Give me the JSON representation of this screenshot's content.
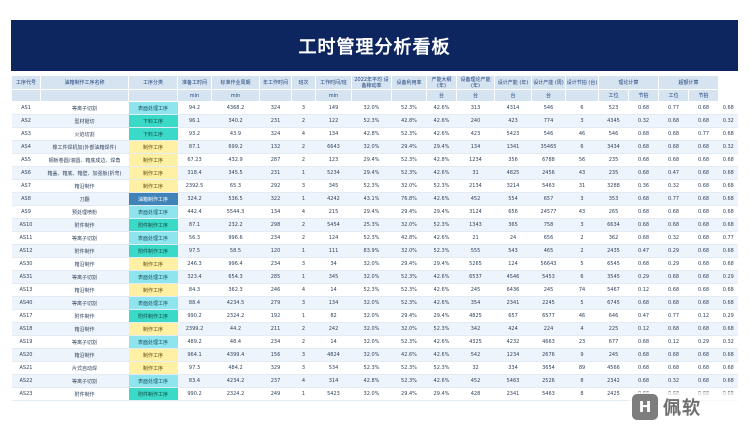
{
  "page": {
    "title": "工时管理分析看板"
  },
  "table": {
    "headers": [
      "工序代号",
      "油箱制作工序名称",
      "工序分类",
      "准备工时间",
      "标准作业周期",
      "年工作时间",
      "班次",
      "工作时间/班",
      "2022年平均 设备稼动率",
      "设备利用率",
      "产能大纲 (年)",
      "设备理论产能 (年)",
      "设计产能 (年)",
      "设计产能 (周)",
      "设计节拍 (台)",
      "理论计算",
      "超额计算"
    ],
    "units": [
      "",
      "",
      "",
      "min",
      "min",
      "",
      "",
      "min",
      "",
      "",
      "台",
      "台",
      "台",
      "台",
      "",
      "工位",
      "节拍",
      "工位",
      "节拍"
    ],
    "rows": [
      {
        "code": "AS1",
        "name": "等离子切割",
        "cat": "表面处理工序",
        "cat_class": "cat-a",
        "c": [
          "94.2",
          "4368.2",
          "324",
          "3",
          "149",
          "32.0%",
          "52.3%",
          "42.6%",
          "313",
          "4314",
          "546",
          "6",
          "523",
          "0.68",
          "0.77",
          "0.68",
          "0.68"
        ]
      },
      {
        "code": "AS2",
        "name": "型材锯切",
        "cat": "下料工序",
        "cat_class": "cat-b",
        "c": [
          "96.1",
          "340.2",
          "231",
          "2",
          "122",
          "52.3%",
          "42.8%",
          "42.6%",
          "240",
          "423",
          "774",
          "3",
          "4345",
          "0.32",
          "0.68",
          "0.68",
          "0.32"
        ]
      },
      {
        "code": "AS3",
        "name": "火焰切割",
        "cat": "下料工序",
        "cat_class": "cat-b",
        "c": [
          "93.2",
          "43.9",
          "324",
          "4",
          "134",
          "42.8%",
          "52.3%",
          "42.6%",
          "423",
          "5423",
          "546",
          "46",
          "546",
          "0.68",
          "0.68",
          "0.77",
          "0.68"
        ]
      },
      {
        "code": "AS4",
        "name": "橡工件焊机加(外部油箱焊件)",
        "cat": "制作工序",
        "cat_class": "cat-c",
        "c": [
          "87.1",
          "699.2",
          "132",
          "2",
          "6643",
          "32.0%",
          "29.4%",
          "29.4%",
          "134",
          "1341",
          "35465",
          "6",
          "3434",
          "0.68",
          "0.68",
          "0.68",
          "0.32"
        ]
      },
      {
        "code": "AS5",
        "name": "钢板卷圆/滚圆、箱底成边、焊角",
        "cat": "制作工序",
        "cat_class": "cat-c",
        "c": [
          "67.23",
          "432.9",
          "287",
          "2",
          "123",
          "29.4%",
          "52.3%",
          "42.8%",
          "1234",
          "356",
          "6788",
          "56",
          "235",
          "0.68",
          "0.68",
          "0.68",
          "0.68"
        ]
      },
      {
        "code": "AS6",
        "name": "箱盖、箱底、箱壁、加强板(折弯)",
        "cat": "制作工序",
        "cat_class": "cat-c",
        "c": [
          "318.4",
          "345.5",
          "231",
          "1",
          "5234",
          "29.4%",
          "52.3%",
          "42.6%",
          "31",
          "4825",
          "2456",
          "43",
          "235",
          "0.68",
          "0.47",
          "0.68",
          "0.68"
        ]
      },
      {
        "code": "AS7",
        "name": "箱沿制作",
        "cat": "制作工序",
        "cat_class": "cat-c",
        "c": [
          "2392.5",
          "65.3",
          "292",
          "3",
          "345",
          "52.3%",
          "32.0%",
          "52.3%",
          "2134",
          "3214",
          "5463",
          "31",
          "3288",
          "0.36",
          "0.32",
          "0.68",
          "0.68"
        ]
      },
      {
        "code": "AS8",
        "name": "刀翻",
        "cat": "油箱制作工序",
        "cat_class": "cat-d",
        "c": [
          "324.2",
          "536.5",
          "322",
          "1",
          "4242",
          "43.1%",
          "76.8%",
          "42.6%",
          "452",
          "554",
          "657",
          "3",
          "353",
          "0.68",
          "0.77",
          "0.68",
          "0.68"
        ]
      },
      {
        "code": "AS9",
        "name": "预处理喷粉",
        "cat": "表面处理工序",
        "cat_class": "cat-a",
        "c": [
          "442.4",
          "5544.3",
          "134",
          "4",
          "215",
          "29.4%",
          "29.4%",
          "29.4%",
          "3124",
          "656",
          "24577",
          "43",
          "265",
          "0.68",
          "0.68",
          "0.68",
          "0.68"
        ]
      },
      {
        "code": "AS10",
        "name": "附件制作",
        "cat": "附件制作工序",
        "cat_class": "cat-b",
        "c": [
          "87.1",
          "232.2",
          "298",
          "2",
          "5454",
          "25.3%",
          "32.0%",
          "52.3%",
          "1343",
          "365",
          "758",
          "3",
          "6634",
          "0.68",
          "0.68",
          "0.68",
          "0.68"
        ]
      },
      {
        "code": "AS11",
        "name": "等离子切割",
        "cat": "表面处理工序",
        "cat_class": "cat-a",
        "c": [
          "56.3",
          "996.6",
          "234",
          "2",
          "124",
          "52.3%",
          "42.8%",
          "42.6%",
          "21",
          "24",
          "656",
          "2",
          "362",
          "0.68",
          "0.32",
          "0.68",
          "0.77"
        ]
      },
      {
        "code": "AS12",
        "name": "附件制作",
        "cat": "附件制作工序",
        "cat_class": "cat-b",
        "c": [
          "97.5",
          "58.5",
          "120",
          "1",
          "111",
          "83.9%",
          "32.0%",
          "52.3%",
          "555",
          "543",
          "465",
          "2",
          "2435",
          "0.47",
          "0.29",
          "0.68",
          "0.68"
        ]
      },
      {
        "code": "AS30",
        "name": "箱沿制作",
        "cat": "制作工序",
        "cat_class": "cat-c",
        "c": [
          "246.3",
          "996.4",
          "234",
          "3",
          "34",
          "32.0%",
          "29.4%",
          "29.4%",
          "5265",
          "124",
          "56643",
          "5",
          "6545",
          "0.68",
          "0.29",
          "0.68",
          "0.68"
        ]
      },
      {
        "code": "AS31",
        "name": "等离子切割",
        "cat": "表面处理工序",
        "cat_class": "cat-a",
        "c": [
          "323.4",
          "654.3",
          "285",
          "1",
          "345",
          "32.0%",
          "52.3%",
          "42.6%",
          "6537",
          "4546",
          "5453",
          "6",
          "3545",
          "0.29",
          "0.68",
          "0.68",
          "0.29"
        ]
      },
      {
        "code": "AS13",
        "name": "箱沿制作",
        "cat": "制作工序",
        "cat_class": "cat-c",
        "c": [
          "84.3",
          "362.3",
          "246",
          "4",
          "14",
          "52.3%",
          "52.3%",
          "42.6%",
          "245",
          "6436",
          "245",
          "74",
          "5467",
          "0.12",
          "0.68",
          "0.68",
          "0.68"
        ]
      },
      {
        "code": "AS40",
        "name": "等离子切割",
        "cat": "表面处理工序",
        "cat_class": "cat-a",
        "c": [
          "88.4",
          "4234.5",
          "279",
          "3",
          "134",
          "32.0%",
          "52.3%",
          "42.6%",
          "354",
          "2341",
          "2245",
          "5",
          "6745",
          "0.68",
          "0.68",
          "0.68",
          "0.68"
        ]
      },
      {
        "code": "AS17",
        "name": "附件制作",
        "cat": "附件制作工序",
        "cat_class": "cat-b",
        "c": [
          "990.2",
          "2324.2",
          "192",
          "1",
          "82",
          "32.0%",
          "29.4%",
          "29.4%",
          "4825",
          "657",
          "6577",
          "46",
          "646",
          "0.47",
          "0.77",
          "0.12",
          "0.29"
        ]
      },
      {
        "code": "AS18",
        "name": "箱沿制作",
        "cat": "制作工序",
        "cat_class": "cat-c",
        "c": [
          "2399.2",
          "44.2",
          "211",
          "2",
          "242",
          "32.0%",
          "32.0%",
          "52.3%",
          "342",
          "424",
          "224",
          "4",
          "225",
          "0.12",
          "0.68",
          "0.68",
          "0.68"
        ]
      },
      {
        "code": "AS19",
        "name": "等离子切割",
        "cat": "表面处理工序",
        "cat_class": "cat-a",
        "c": [
          "489.2",
          "48.4",
          "234",
          "2",
          "14",
          "32.0%",
          "52.3%",
          "42.6%",
          "4325",
          "4232",
          "4663",
          "23",
          "677",
          "0.68",
          "0.12",
          "0.29",
          "0.32"
        ]
      },
      {
        "code": "AS20",
        "name": "箱沿制作",
        "cat": "制作工序",
        "cat_class": "cat-c",
        "c": [
          "964.1",
          "4399.4",
          "156",
          "3",
          "4824",
          "32.0%",
          "42.6%",
          "42.6%",
          "542",
          "1234",
          "2676",
          "9",
          "245",
          "0.68",
          "0.68",
          "0.68",
          "0.68"
        ]
      },
      {
        "code": "AS21",
        "name": "片式自动焊",
        "cat": "制作工序",
        "cat_class": "cat-c",
        "c": [
          "97.3",
          "484.2",
          "329",
          "3",
          "534",
          "52.3%",
          "52.3%",
          "52.3%",
          "32",
          "334",
          "3654",
          "89",
          "4566",
          "0.68",
          "0.68",
          "0.68",
          "0.68"
        ]
      },
      {
        "code": "AS22",
        "name": "等离子切割",
        "cat": "表面处理工序",
        "cat_class": "cat-a",
        "c": [
          "83.4",
          "4234.2",
          "237",
          "4",
          "314",
          "42.8%",
          "52.3%",
          "42.6%",
          "452",
          "5463",
          "2526",
          "8",
          "2342",
          "0.68",
          "0.32",
          "0.68",
          "0.68"
        ]
      },
      {
        "code": "AS23",
        "name": "附件制作",
        "cat": "附件制作工序",
        "cat_class": "cat-b",
        "c": [
          "990.2",
          "2324.2",
          "249",
          "1",
          "5423",
          "32.0%",
          "29.4%",
          "29.4%",
          "428",
          "2341",
          "5463",
          "8",
          "2425",
          "0.68",
          "0.68",
          "0.68",
          "0.68"
        ]
      }
    ]
  },
  "watermark": {
    "mark": "H",
    "text": "佩软"
  }
}
